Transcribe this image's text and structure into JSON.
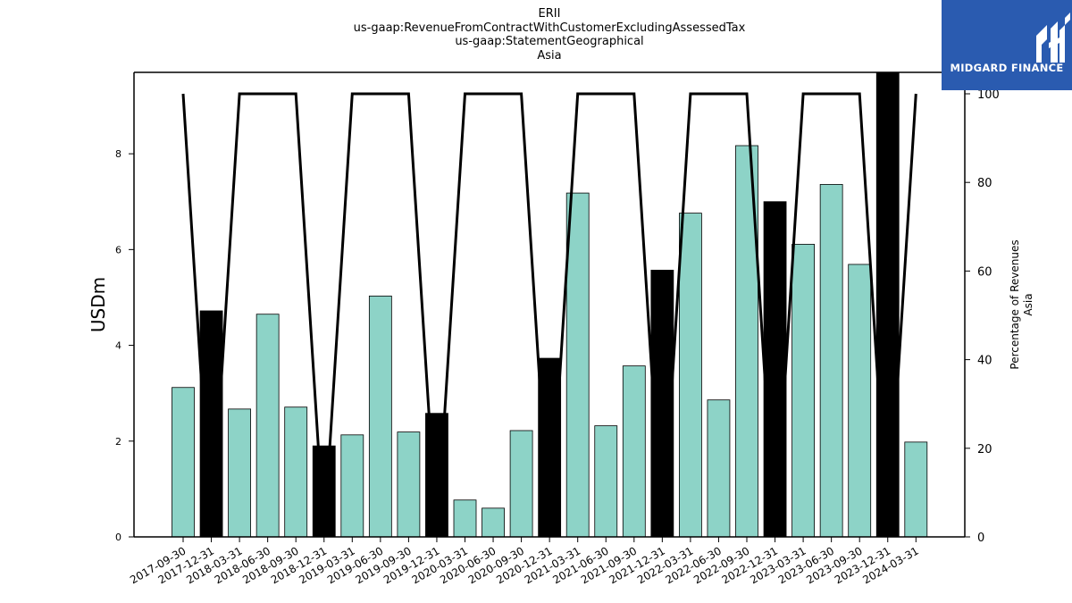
{
  "header": {
    "lines": [
      "ERII",
      "us-gaap:RevenueFromContractWithCustomerExcludingAssessedTax",
      "us-gaap:StatementGeographical",
      "Asia"
    ]
  },
  "logo": {
    "text": "MIDGARD FINANCE",
    "color": "#2a5bb0",
    "icon": "midgard-mh-logo-icon"
  },
  "chart_data": {
    "type": "bar",
    "title": "ERII us-gaap:RevenueFromContractWithCustomerExcludingAssessedTax us-gaap:StatementGeographical Asia",
    "xlabel": "",
    "ylabel": "USDm",
    "y2label_lines": [
      "Percentage of Revenues",
      "Asia"
    ],
    "ylim": [
      0,
      9.7
    ],
    "y2lim": [
      0,
      100
    ],
    "yticks": [
      0,
      2,
      4,
      6,
      8
    ],
    "y2ticks": [
      0,
      20,
      40,
      60,
      80,
      100
    ],
    "grid": false,
    "categories": [
      "2017-09-30",
      "2017-12-31",
      "2018-03-31",
      "2018-06-30",
      "2018-09-30",
      "2018-12-31",
      "2019-03-31",
      "2019-06-30",
      "2019-09-30",
      "2019-12-31",
      "2020-03-31",
      "2020-06-30",
      "2020-09-30",
      "2020-12-31",
      "2021-03-31",
      "2021-06-30",
      "2021-09-30",
      "2021-12-31",
      "2022-03-31",
      "2022-06-30",
      "2022-09-30",
      "2022-12-31",
      "2023-03-31",
      "2023-06-30",
      "2023-09-30",
      "2023-12-31",
      "2024-03-31"
    ],
    "series": [
      {
        "type": "bar",
        "axis": "left",
        "values": [
          3.12,
          4.72,
          2.67,
          4.65,
          2.71,
          1.9,
          2.13,
          5.03,
          2.19,
          2.58,
          0.77,
          0.6,
          2.22,
          3.73,
          7.18,
          2.32,
          3.57,
          5.57,
          6.76,
          2.86,
          8.17,
          7.0,
          6.11,
          7.36,
          5.69,
          9.7,
          1.98
        ],
        "highlight_quarter": "12-31",
        "colors": {
          "normal": "#8dd3c7",
          "highlight": "#000000"
        }
      },
      {
        "type": "line",
        "axis": "right",
        "values": [
          100,
          0,
          100,
          100,
          100,
          0,
          100,
          100,
          100,
          0,
          100,
          100,
          100,
          0,
          100,
          100,
          100,
          0,
          100,
          100,
          100,
          0,
          100,
          100,
          100,
          0,
          100
        ],
        "color": "#000000"
      }
    ]
  }
}
